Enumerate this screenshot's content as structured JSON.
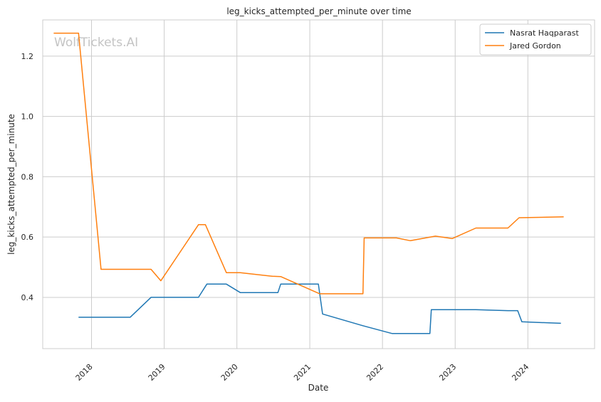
{
  "chart_data": {
    "type": "line",
    "title": "leg_kicks_attempted_per_minute over time",
    "xlabel": "Date",
    "ylabel": "leg_kicks_attempted_per_minute",
    "watermark": "WolfTickets.AI",
    "xlim": [
      "2017-05-01",
      "2024-12-01"
    ],
    "ylim": [
      0.23,
      1.32
    ],
    "x_ticks": [
      "2018",
      "2019",
      "2020",
      "2021",
      "2022",
      "2023",
      "2024"
    ],
    "y_ticks": [
      "0.4",
      "0.6",
      "0.8",
      "1.0",
      "1.2"
    ],
    "grid": true,
    "legend_position": "top-right",
    "series": [
      {
        "name": "Nasrat Haqparast",
        "color": "#1f77b4",
        "points": [
          [
            "2017-10-28",
            0.334
          ],
          [
            "2018-07-14",
            0.334
          ],
          [
            "2018-10-27",
            0.4
          ],
          [
            "2019-06-22",
            0.4
          ],
          [
            "2019-08-03",
            0.444
          ],
          [
            "2019-11-09",
            0.444
          ],
          [
            "2020-01-18",
            0.416
          ],
          [
            "2020-07-25",
            0.416
          ],
          [
            "2020-08-08",
            0.444
          ],
          [
            "2021-02-13",
            0.444
          ],
          [
            "2021-03-06",
            0.345
          ],
          [
            "2021-09-25",
            0.306
          ],
          [
            "2022-02-19",
            0.28
          ],
          [
            "2022-08-27",
            0.28
          ],
          [
            "2022-09-03",
            0.359
          ],
          [
            "2023-04-15",
            0.359
          ],
          [
            "2023-09-23",
            0.356
          ],
          [
            "2023-11-11",
            0.356
          ],
          [
            "2023-12-02",
            0.319
          ],
          [
            "2024-06-15",
            0.314
          ]
        ]
      },
      {
        "name": "Jared Gordon",
        "color": "#ff7f0e",
        "points": [
          [
            "2017-06-25",
            1.276
          ],
          [
            "2017-10-28",
            1.276
          ],
          [
            "2018-02-18",
            0.493
          ],
          [
            "2018-10-27",
            0.493
          ],
          [
            "2018-12-15",
            0.455
          ],
          [
            "2019-06-22",
            0.641
          ],
          [
            "2019-07-27",
            0.641
          ],
          [
            "2019-11-09",
            0.482
          ],
          [
            "2020-01-18",
            0.482
          ],
          [
            "2020-06-27",
            0.47
          ],
          [
            "2020-08-08",
            0.469
          ],
          [
            "2021-02-20",
            0.412
          ],
          [
            "2021-09-25",
            0.412
          ],
          [
            "2021-10-01",
            0.597
          ],
          [
            "2022-03-12",
            0.597
          ],
          [
            "2022-05-21",
            0.588
          ],
          [
            "2022-09-24",
            0.603
          ],
          [
            "2022-12-17",
            0.595
          ],
          [
            "2023-04-15",
            0.63
          ],
          [
            "2023-09-23",
            0.63
          ],
          [
            "2023-11-18",
            0.664
          ],
          [
            "2024-06-29",
            0.667
          ]
        ]
      }
    ]
  }
}
